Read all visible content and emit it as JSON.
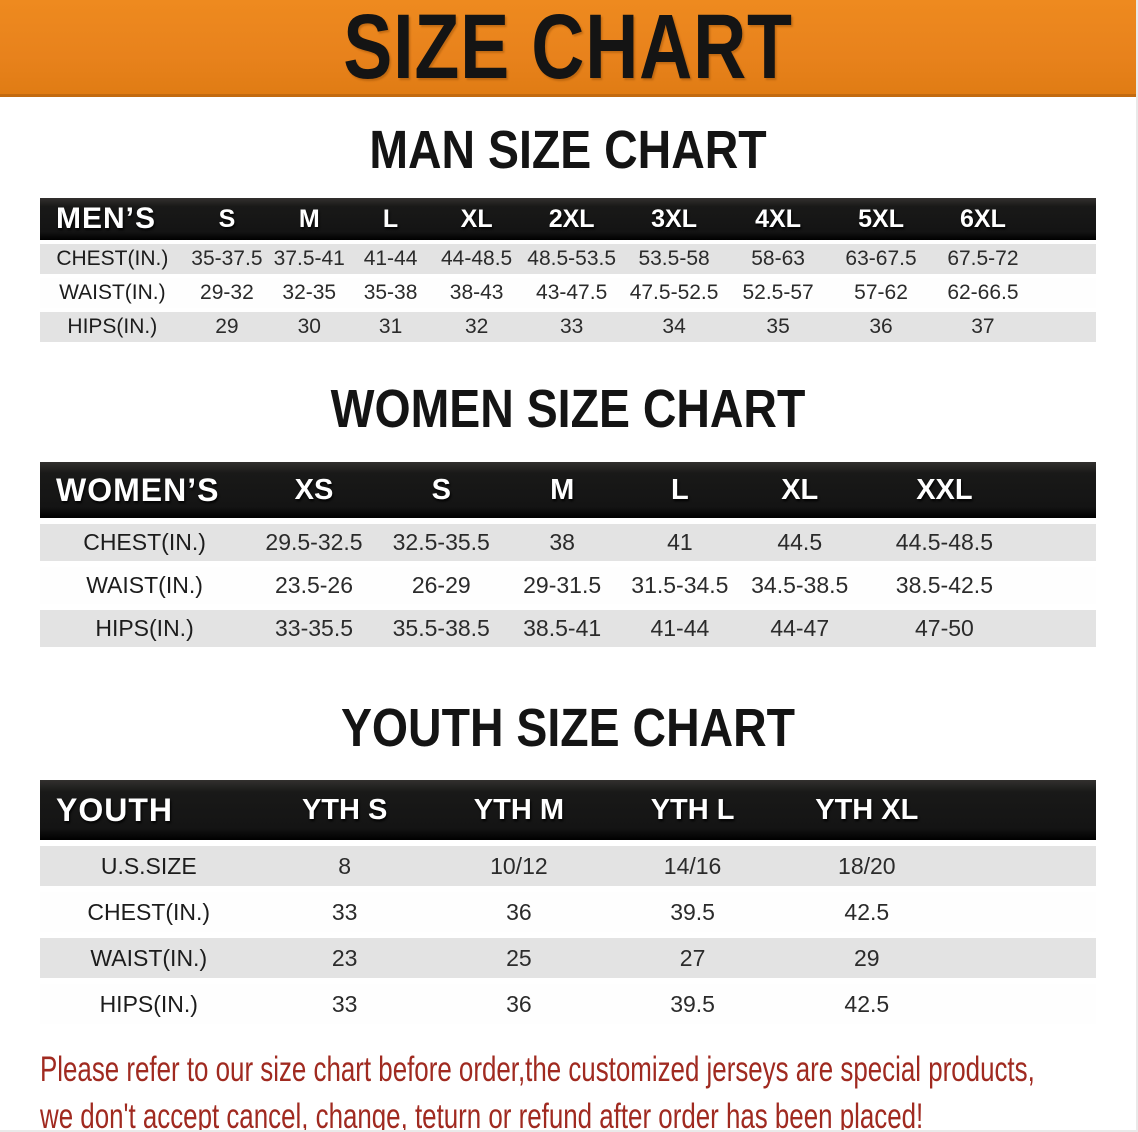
{
  "banner": {
    "title": "SIZE CHART"
  },
  "colors": {
    "banner_bg": "#E8821C",
    "table_header_bg": "#1A1A1A",
    "row_stripe_gray": "#E3E3E3",
    "disclaimer_text": "#A02A20"
  },
  "sections": [
    {
      "heading": "MAN SIZE CHART",
      "table": {
        "header_label": "MEN’S",
        "columns": [
          "S",
          "M",
          "L",
          "XL",
          "2XL",
          "3XL",
          "4XL",
          "5XL",
          "6XL"
        ],
        "rows": [
          {
            "label": "CHEST(IN.)",
            "values": [
              "35-37.5",
              "37.5-41",
              "41-44",
              "44-48.5",
              "48.5-53.5",
              "53.5-58",
              "58-63",
              "63-67.5",
              "67.5-72"
            ]
          },
          {
            "label": "WAIST(IN.)",
            "values": [
              "29-32",
              "32-35",
              "35-38",
              "38-43",
              "43-47.5",
              "47.5-52.5",
              "52.5-57",
              "57-62",
              "62-66.5"
            ]
          },
          {
            "label": "HIPS(IN.)",
            "values": [
              "29",
              "30",
              "31",
              "32",
              "33",
              "34",
              "35",
              "36",
              "37"
            ]
          }
        ]
      }
    },
    {
      "heading": "WOMEN SIZE CHART",
      "table": {
        "header_label": "WOMEN’S",
        "columns": [
          "XS",
          "S",
          "M",
          "L",
          "XL",
          "XXL"
        ],
        "rows": [
          {
            "label": "CHEST(IN.)",
            "values": [
              "29.5-32.5",
              "32.5-35.5",
              "38",
              "41",
              "44.5",
              "44.5-48.5"
            ]
          },
          {
            "label": "WAIST(IN.)",
            "values": [
              "23.5-26",
              "26-29",
              "29-31.5",
              "31.5-34.5",
              "34.5-38.5",
              "38.5-42.5"
            ]
          },
          {
            "label": "HIPS(IN.)",
            "values": [
              "33-35.5",
              "35.5-38.5",
              "38.5-41",
              "41-44",
              "44-47",
              "47-50"
            ]
          }
        ]
      }
    },
    {
      "heading": "YOUTH SIZE CHART",
      "table": {
        "header_label": "YOUTH",
        "columns": [
          "YTH S",
          "YTH M",
          "YTH L",
          "YTH XL"
        ],
        "rows": [
          {
            "label": "U.S.SIZE",
            "values": [
              "8",
              "10/12",
              "14/16",
              "18/20"
            ]
          },
          {
            "label": "CHEST(IN.)",
            "values": [
              "33",
              "36",
              "39.5",
              "42.5"
            ]
          },
          {
            "label": "WAIST(IN.)",
            "values": [
              "23",
              "25",
              "27",
              "29"
            ]
          },
          {
            "label": "HIPS(IN.)",
            "values": [
              "33",
              "36",
              "39.5",
              "42.5"
            ]
          }
        ]
      }
    }
  ],
  "disclaimer": {
    "line1": "Please refer to our size chart before order,the customized jerseys are special products,",
    "line2": "we don't accept cancel, change, teturn or refund after order has been placed!"
  }
}
